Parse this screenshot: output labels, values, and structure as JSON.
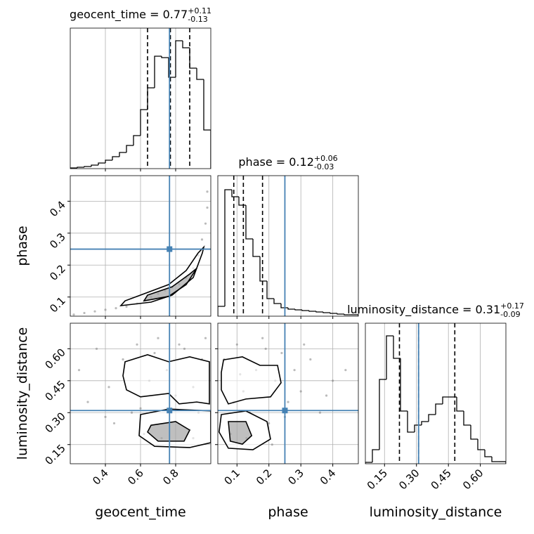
{
  "chart_data": [
    {
      "type": "histogram",
      "title": "geocent_time = 0.77",
      "title_upper": "+0.11",
      "title_lower": "-0.13",
      "bins": [
        0.2,
        0.24,
        0.28,
        0.32,
        0.36,
        0.4,
        0.44,
        0.48,
        0.52,
        0.56,
        0.6,
        0.64,
        0.68,
        0.72,
        0.76,
        0.8,
        0.84,
        0.88,
        0.92,
        0.96,
        1.0
      ],
      "counts": [
        1,
        2,
        3,
        5,
        8,
        12,
        17,
        23,
        33,
        47,
        84,
        115,
        160,
        158,
        130,
        182,
        172,
        143,
        127,
        55
      ],
      "color": "#000000",
      "quantiles": [
        0.64,
        0.77,
        0.88
      ],
      "truth": 0.765,
      "truth_color": "#4682b4",
      "xlim": [
        0.2,
        1.0
      ],
      "ylim": [
        0,
        200
      ],
      "xticks": [
        0.4,
        0.6,
        0.8
      ],
      "grid": true
    },
    {
      "type": "scatter2d",
      "ylabel": "phase",
      "x": [
        0.22,
        0.28,
        0.34,
        0.4,
        0.46,
        0.52,
        0.58,
        0.62,
        0.66,
        0.7,
        0.74,
        0.78,
        0.82,
        0.86,
        0.9,
        0.93,
        0.95,
        0.97,
        0.98,
        0.98
      ],
      "y": [
        0.045,
        0.05,
        0.055,
        0.06,
        0.065,
        0.07,
        0.08,
        0.09,
        0.1,
        0.11,
        0.12,
        0.13,
        0.14,
        0.16,
        0.19,
        0.23,
        0.28,
        0.33,
        0.38,
        0.43
      ],
      "contours": [
        {
          "x": [
            0.488,
            0.66,
            0.78,
            0.9,
            0.952,
            0.96,
            0.928,
            0.86,
            0.76,
            0.62,
            0.512
          ],
          "y": [
            0.073,
            0.084,
            0.106,
            0.161,
            0.238,
            0.256,
            0.238,
            0.183,
            0.139,
            0.11,
            0.088
          ]
        },
        {
          "x": [
            0.62,
            0.76,
            0.86,
            0.92,
            0.88,
            0.78,
            0.64
          ],
          "y": [
            0.088,
            0.102,
            0.139,
            0.19,
            0.172,
            0.132,
            0.106
          ]
        }
      ],
      "color": "#000000",
      "truth": [
        0.765,
        0.25
      ],
      "truth_color": "#4682b4",
      "xlim": [
        0.2,
        1.0
      ],
      "ylim": [
        0.04,
        0.48
      ],
      "xticks": [
        0.4,
        0.6,
        0.8
      ],
      "yticks": [
        0.1,
        0.2,
        0.3,
        0.4
      ],
      "grid": true
    },
    {
      "type": "histogram",
      "title": "phase = 0.12",
      "title_upper": "+0.06",
      "title_lower": "-0.03",
      "bins": [
        0.04,
        0.062,
        0.084,
        0.106,
        0.128,
        0.15,
        0.172,
        0.194,
        0.216,
        0.238,
        0.26,
        0.282,
        0.304,
        0.326,
        0.348,
        0.37,
        0.392,
        0.414,
        0.436,
        0.458,
        0.48
      ],
      "counts": [
        14,
        180,
        170,
        158,
        110,
        85,
        50,
        25,
        18,
        12,
        10,
        9,
        8,
        7,
        6,
        5,
        4,
        3,
        2,
        2
      ],
      "color": "#000000",
      "quantiles": [
        0.09,
        0.12,
        0.18
      ],
      "truth": 0.25,
      "truth_color": "#4682b4",
      "xlim": [
        0.04,
        0.48
      ],
      "ylim": [
        0,
        200
      ],
      "xticks": [
        0.1,
        0.2,
        0.3,
        0.4
      ],
      "grid": true
    },
    {
      "type": "scatter2d",
      "xlabel": "geocent_time",
      "ylabel": "luminosity_distance",
      "x": [
        0.25,
        0.3,
        0.35,
        0.42,
        0.45,
        0.5,
        0.55,
        0.58,
        0.62,
        0.65,
        0.7,
        0.72,
        0.75,
        0.8,
        0.85,
        0.88,
        0.9,
        0.93,
        0.95,
        0.97,
        0.4,
        0.6,
        0.68,
        0.82,
        0.9
      ],
      "y": [
        0.5,
        0.35,
        0.6,
        0.42,
        0.25,
        0.55,
        0.3,
        0.62,
        0.2,
        0.45,
        0.65,
        0.18,
        0.5,
        0.38,
        0.6,
        0.22,
        0.42,
        0.3,
        0.55,
        0.65,
        0.28,
        0.32,
        0.58,
        0.62,
        0.18
      ],
      "contours": [
        {
          "x": [
            0.512,
            0.64,
            0.76,
            0.88,
            0.992,
            0.992,
            0.92,
            0.82,
            0.76,
            0.6,
            0.52,
            0.5
          ],
          "y": [
            0.539,
            0.572,
            0.539,
            0.562,
            0.539,
            0.341,
            0.35,
            0.341,
            0.39,
            0.374,
            0.407,
            0.473
          ]
        },
        {
          "x": [
            0.6,
            0.76,
            1.0,
            1.0,
            0.88,
            0.68,
            0.592
          ],
          "y": [
            0.291,
            0.317,
            0.308,
            0.159,
            0.136,
            0.142,
            0.192
          ]
        },
        {
          "x": [
            0.66,
            0.8,
            0.88,
            0.848,
            0.7,
            0.64
          ],
          "y": [
            0.241,
            0.258,
            0.218,
            0.166,
            0.166,
            0.209
          ]
        }
      ],
      "color": "#000000",
      "truth": [
        0.765,
        0.31
      ],
      "truth_color": "#4682b4",
      "xlim": [
        0.2,
        1.0
      ],
      "ylim": [
        0.06,
        0.72
      ],
      "xticks": [
        0.4,
        0.6,
        0.8
      ],
      "yticks": [
        0.15,
        {
          "value": 0.3,
          "label": "0.30"
        },
        0.45,
        {
          "value": 0.6,
          "label": "0.60"
        }
      ],
      "grid": true
    },
    {
      "type": "scatter2d",
      "xlabel": "phase",
      "x": [
        0.06,
        0.08,
        0.1,
        0.12,
        0.14,
        0.16,
        0.18,
        0.2,
        0.22,
        0.24,
        0.26,
        0.28,
        0.3,
        0.33,
        0.36,
        0.4,
        0.44,
        0.09,
        0.13,
        0.19,
        0.25,
        0.31,
        0.38,
        0.11,
        0.21
      ],
      "y": [
        0.55,
        0.2,
        0.62,
        0.4,
        0.3,
        0.5,
        0.65,
        0.25,
        0.45,
        0.58,
        0.35,
        0.5,
        0.4,
        0.55,
        0.3,
        0.45,
        0.5,
        0.35,
        0.18,
        0.6,
        0.28,
        0.62,
        0.38,
        0.48,
        0.15
      ],
      "contours": [
        {
          "x": [
            0.058,
            0.117,
            0.172,
            0.227,
            0.238,
            0.205,
            0.128,
            0.073,
            0.051,
            0.051
          ],
          "y": [
            0.548,
            0.562,
            0.522,
            0.522,
            0.44,
            0.374,
            0.364,
            0.341,
            0.407,
            0.489
          ]
        },
        {
          "x": [
            0.051,
            0.128,
            0.194,
            0.205,
            0.15,
            0.073,
            0.044
          ],
          "y": [
            0.291,
            0.308,
            0.258,
            0.176,
            0.126,
            0.133,
            0.209
          ]
        },
        {
          "x": [
            0.073,
            0.128,
            0.146,
            0.117,
            0.079
          ],
          "y": [
            0.258,
            0.258,
            0.192,
            0.152,
            0.166
          ]
        }
      ],
      "color": "#000000",
      "truth": [
        0.25,
        0.31
      ],
      "truth_color": "#4682b4",
      "xlim": [
        0.04,
        0.48
      ],
      "ylim": [
        0.06,
        0.72
      ],
      "xticks": [
        0.1,
        0.2,
        0.3,
        0.4
      ],
      "yticks": [
        0.15,
        {
          "value": 0.3,
          "label": "0.30"
        },
        0.45,
        {
          "value": 0.6,
          "label": "0.60"
        }
      ],
      "grid": true
    },
    {
      "type": "histogram",
      "title": "luminosity_distance = 0.31",
      "title_upper": "+0.17",
      "title_lower": "-0.09",
      "xlabel": "luminosity_distance",
      "bins": [
        0.06,
        0.093,
        0.126,
        0.159,
        0.192,
        0.225,
        0.258,
        0.291,
        0.324,
        0.357,
        0.39,
        0.423,
        0.456,
        0.489,
        0.522,
        0.555,
        0.588,
        0.621,
        0.654,
        0.687,
        0.72
      ],
      "counts": [
        2,
        20,
        120,
        182,
        150,
        75,
        45,
        55,
        60,
        70,
        85,
        95,
        95,
        75,
        55,
        35,
        20,
        10,
        3,
        3
      ],
      "color": "#000000",
      "quantiles": [
        0.22,
        0.31,
        0.48
      ],
      "truth": 0.31,
      "truth_color": "#4682b4",
      "xlim": [
        0.06,
        0.72
      ],
      "ylim": [
        0,
        200
      ],
      "xticks": [
        0.15,
        {
          "value": 0.3,
          "label": "0.30"
        },
        0.45,
        {
          "value": 0.6,
          "label": "0.60"
        }
      ],
      "grid": true
    }
  ]
}
